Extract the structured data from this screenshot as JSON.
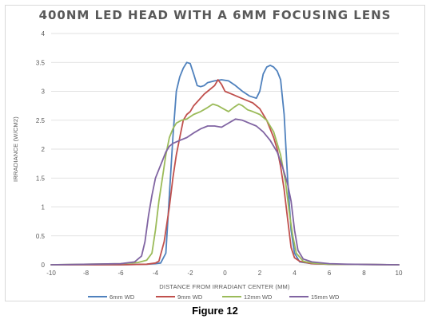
{
  "chart_data": {
    "type": "line",
    "title": "400NM LED HEAD WITH A 6MM FOCUSING LENS",
    "xlabel": "DISTANCE FROM IRRADIANT CENTER (MM)",
    "ylabel": "IRRADIANCE (W/CM2)",
    "xlim": [
      -10,
      10
    ],
    "ylim": [
      0,
      4
    ],
    "xticks": [
      -10,
      -8,
      -6,
      -4,
      -2,
      0,
      2,
      4,
      6,
      8,
      10
    ],
    "yticks": [
      0,
      0.5,
      1,
      1.5,
      2,
      2.5,
      3,
      3.5,
      4
    ],
    "grid": "horizontal",
    "legend": "bottom",
    "series": [
      {
        "name": "6mm WD",
        "color": "#4f81bd",
        "points": [
          [
            -10,
            0
          ],
          [
            -6,
            0
          ],
          [
            -4.5,
            0.01
          ],
          [
            -4,
            0.02
          ],
          [
            -3.7,
            0.03
          ],
          [
            -3.4,
            0.2
          ],
          [
            -3.2,
            1.2
          ],
          [
            -3.0,
            2.2
          ],
          [
            -2.8,
            3.0
          ],
          [
            -2.6,
            3.25
          ],
          [
            -2.4,
            3.4
          ],
          [
            -2.2,
            3.5
          ],
          [
            -2.0,
            3.48
          ],
          [
            -1.8,
            3.3
          ],
          [
            -1.6,
            3.1
          ],
          [
            -1.4,
            3.08
          ],
          [
            -1.2,
            3.1
          ],
          [
            -1.0,
            3.15
          ],
          [
            -0.6,
            3.18
          ],
          [
            -0.2,
            3.2
          ],
          [
            0.2,
            3.18
          ],
          [
            0.6,
            3.1
          ],
          [
            1.0,
            3.0
          ],
          [
            1.4,
            2.92
          ],
          [
            1.8,
            2.88
          ],
          [
            2.0,
            3.0
          ],
          [
            2.2,
            3.3
          ],
          [
            2.4,
            3.42
          ],
          [
            2.6,
            3.45
          ],
          [
            2.8,
            3.42
          ],
          [
            3.0,
            3.35
          ],
          [
            3.2,
            3.2
          ],
          [
            3.4,
            2.6
          ],
          [
            3.6,
            1.5
          ],
          [
            3.8,
            0.6
          ],
          [
            4.0,
            0.2
          ],
          [
            4.3,
            0.05
          ],
          [
            5,
            0.02
          ],
          [
            6,
            0.01
          ],
          [
            10,
            0
          ]
        ]
      },
      {
        "name": "9mm WD",
        "color": "#c0504d",
        "points": [
          [
            -10,
            0
          ],
          [
            -6,
            0
          ],
          [
            -4.5,
            0.01
          ],
          [
            -4.0,
            0.03
          ],
          [
            -3.8,
            0.06
          ],
          [
            -3.5,
            0.4
          ],
          [
            -3.2,
            1.0
          ],
          [
            -3.0,
            1.5
          ],
          [
            -2.8,
            1.9
          ],
          [
            -2.6,
            2.2
          ],
          [
            -2.4,
            2.5
          ],
          [
            -2.2,
            2.6
          ],
          [
            -2.0,
            2.65
          ],
          [
            -1.8,
            2.75
          ],
          [
            -1.5,
            2.85
          ],
          [
            -1.2,
            2.95
          ],
          [
            -1.0,
            3.0
          ],
          [
            -0.6,
            3.1
          ],
          [
            -0.4,
            3.2
          ],
          [
            -0.2,
            3.12
          ],
          [
            0.0,
            3.0
          ],
          [
            0.4,
            2.95
          ],
          [
            0.8,
            2.9
          ],
          [
            1.2,
            2.85
          ],
          [
            1.6,
            2.8
          ],
          [
            2.0,
            2.7
          ],
          [
            2.4,
            2.5
          ],
          [
            2.8,
            2.2
          ],
          [
            3.0,
            2.0
          ],
          [
            3.2,
            1.7
          ],
          [
            3.4,
            1.3
          ],
          [
            3.6,
            0.8
          ],
          [
            3.8,
            0.3
          ],
          [
            4.0,
            0.12
          ],
          [
            4.3,
            0.06
          ],
          [
            5,
            0.02
          ],
          [
            6,
            0.01
          ],
          [
            10,
            0
          ]
        ]
      },
      {
        "name": "12mm WD",
        "color": "#9bbb59",
        "points": [
          [
            -10,
            0
          ],
          [
            -6,
            0.02
          ],
          [
            -5,
            0.04
          ],
          [
            -4.5,
            0.08
          ],
          [
            -4.2,
            0.2
          ],
          [
            -4.0,
            0.6
          ],
          [
            -3.8,
            1.1
          ],
          [
            -3.6,
            1.5
          ],
          [
            -3.4,
            1.9
          ],
          [
            -3.2,
            2.2
          ],
          [
            -3.0,
            2.35
          ],
          [
            -2.8,
            2.45
          ],
          [
            -2.5,
            2.5
          ],
          [
            -2.2,
            2.52
          ],
          [
            -1.8,
            2.6
          ],
          [
            -1.4,
            2.65
          ],
          [
            -1.0,
            2.72
          ],
          [
            -0.7,
            2.78
          ],
          [
            -0.4,
            2.75
          ],
          [
            -0.1,
            2.7
          ],
          [
            0.2,
            2.65
          ],
          [
            0.5,
            2.72
          ],
          [
            0.8,
            2.78
          ],
          [
            1.0,
            2.75
          ],
          [
            1.3,
            2.68
          ],
          [
            1.6,
            2.65
          ],
          [
            2.0,
            2.6
          ],
          [
            2.4,
            2.5
          ],
          [
            2.8,
            2.3
          ],
          [
            3.2,
            1.9
          ],
          [
            3.5,
            1.4
          ],
          [
            3.7,
            0.9
          ],
          [
            3.9,
            0.5
          ],
          [
            4.1,
            0.2
          ],
          [
            4.5,
            0.06
          ],
          [
            5,
            0.03
          ],
          [
            6,
            0.01
          ],
          [
            10,
            0
          ]
        ]
      },
      {
        "name": "15mm WD",
        "color": "#8064a2",
        "points": [
          [
            -10,
            0
          ],
          [
            -6,
            0.02
          ],
          [
            -5.2,
            0.05
          ],
          [
            -4.8,
            0.15
          ],
          [
            -4.6,
            0.4
          ],
          [
            -4.4,
            0.85
          ],
          [
            -4.2,
            1.2
          ],
          [
            -4.0,
            1.5
          ],
          [
            -3.8,
            1.65
          ],
          [
            -3.6,
            1.8
          ],
          [
            -3.4,
            1.95
          ],
          [
            -3.2,
            2.05
          ],
          [
            -3.0,
            2.1
          ],
          [
            -2.6,
            2.15
          ],
          [
            -2.2,
            2.2
          ],
          [
            -1.8,
            2.28
          ],
          [
            -1.4,
            2.35
          ],
          [
            -1.0,
            2.4
          ],
          [
            -0.6,
            2.4
          ],
          [
            -0.2,
            2.38
          ],
          [
            0.2,
            2.45
          ],
          [
            0.6,
            2.52
          ],
          [
            1.0,
            2.5
          ],
          [
            1.4,
            2.45
          ],
          [
            1.8,
            2.4
          ],
          [
            2.2,
            2.3
          ],
          [
            2.6,
            2.15
          ],
          [
            3.0,
            1.95
          ],
          [
            3.3,
            1.7
          ],
          [
            3.6,
            1.4
          ],
          [
            3.8,
            1.1
          ],
          [
            4.0,
            0.6
          ],
          [
            4.2,
            0.25
          ],
          [
            4.5,
            0.1
          ],
          [
            5,
            0.05
          ],
          [
            6,
            0.02
          ],
          [
            7,
            0.01
          ],
          [
            10,
            0
          ]
        ]
      }
    ]
  },
  "caption": "Figure 12"
}
